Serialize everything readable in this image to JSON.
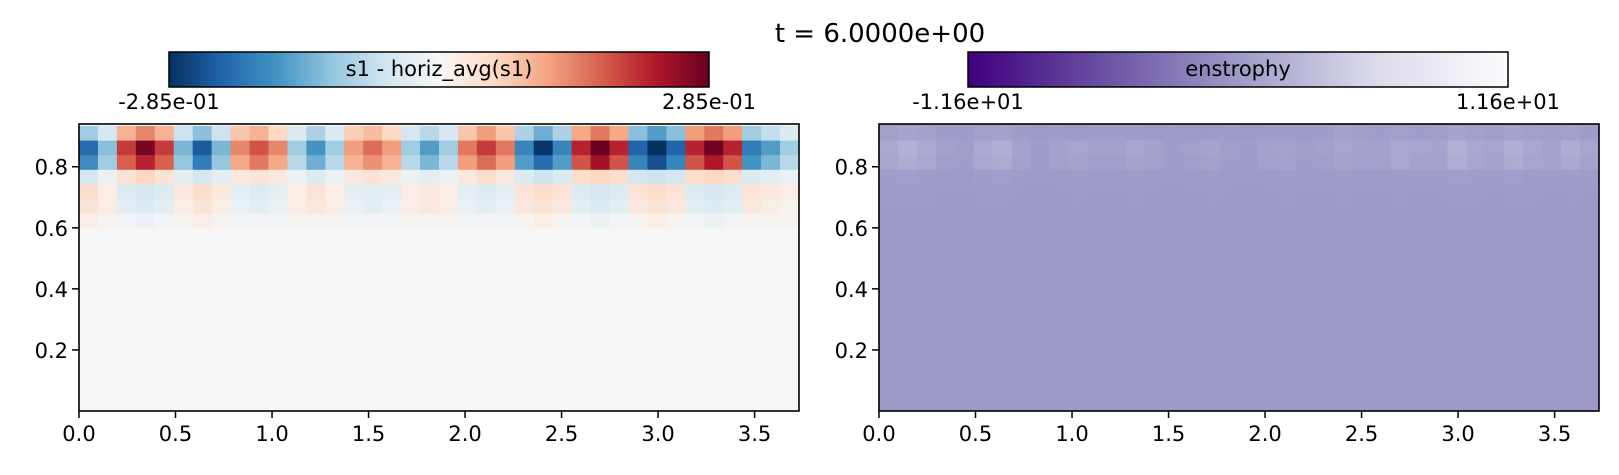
{
  "figure": {
    "title": "t = 6.0000e+00"
  },
  "chart_data": [
    {
      "type": "heatmap",
      "colorbar": {
        "label": "s1 - horiz_avg(s1)",
        "min_label": "-2.85e-01",
        "max_label": "2.85e-01",
        "colormap": "RdBu_r",
        "range": [
          -0.285,
          0.285
        ]
      },
      "xlim": [
        0,
        3.73
      ],
      "ylim": [
        0,
        0.94
      ],
      "xticks": [
        "0.0",
        "0.5",
        "1.0",
        "1.5",
        "2.0",
        "2.5",
        "3.0",
        "3.5"
      ],
      "yticks": [
        "0.2",
        "0.4",
        "0.6",
        "0.8"
      ],
      "grid": false,
      "cells_per_row": 38,
      "rows_from_top": [
        [
          -0.1,
          -0.05,
          0.1,
          0.14,
          0.1,
          -0.06,
          -0.12,
          -0.06,
          0.08,
          0.1,
          0.06,
          -0.04,
          -0.09,
          -0.04,
          0.07,
          0.09,
          0.06,
          -0.05,
          -0.08,
          -0.05,
          0.08,
          0.12,
          0.08,
          -0.09,
          -0.14,
          -0.09,
          0.11,
          0.15,
          0.11,
          -0.12,
          -0.16,
          -0.12,
          0.12,
          0.15,
          0.12,
          -0.1,
          -0.07,
          -0.04
        ],
        [
          -0.22,
          -0.12,
          0.2,
          0.27,
          0.2,
          -0.13,
          -0.24,
          -0.13,
          0.14,
          0.18,
          0.14,
          -0.1,
          -0.17,
          -0.1,
          0.12,
          0.16,
          0.12,
          -0.1,
          -0.16,
          -0.1,
          0.15,
          0.2,
          0.15,
          -0.19,
          -0.28,
          -0.19,
          0.22,
          0.29,
          0.22,
          -0.23,
          -0.3,
          -0.23,
          0.22,
          0.28,
          0.22,
          -0.2,
          -0.16,
          -0.1
        ],
        [
          -0.18,
          -0.1,
          0.17,
          0.22,
          0.17,
          -0.11,
          -0.2,
          -0.11,
          0.11,
          0.15,
          0.11,
          -0.08,
          -0.14,
          -0.08,
          0.1,
          0.13,
          0.1,
          -0.08,
          -0.13,
          -0.08,
          0.12,
          0.16,
          0.12,
          -0.16,
          -0.22,
          -0.16,
          0.18,
          0.24,
          0.18,
          -0.19,
          -0.25,
          -0.19,
          0.18,
          0.23,
          0.18,
          -0.17,
          -0.13,
          -0.08
        ],
        [
          -0.05,
          -0.02,
          0.04,
          0.06,
          0.04,
          -0.03,
          -0.05,
          -0.03,
          0.03,
          0.04,
          0.03,
          -0.02,
          -0.04,
          -0.02,
          0.03,
          0.04,
          0.03,
          -0.02,
          -0.03,
          -0.02,
          0.03,
          0.05,
          0.03,
          -0.04,
          -0.06,
          -0.04,
          0.05,
          0.06,
          0.05,
          -0.05,
          -0.06,
          -0.05,
          0.05,
          0.06,
          0.05,
          -0.04,
          -0.03,
          -0.02
        ],
        [
          0.05,
          0.02,
          -0.04,
          -0.05,
          -0.04,
          0.03,
          0.05,
          0.03,
          -0.03,
          -0.04,
          -0.03,
          0.02,
          0.04,
          0.02,
          -0.03,
          -0.03,
          -0.03,
          0.02,
          0.03,
          0.02,
          -0.03,
          -0.04,
          -0.03,
          0.04,
          0.05,
          0.04,
          -0.04,
          -0.05,
          -0.04,
          0.04,
          0.05,
          0.04,
          -0.04,
          -0.05,
          -0.04,
          0.04,
          0.03,
          0.02
        ],
        [
          0.04,
          0.02,
          -0.03,
          -0.04,
          -0.03,
          0.02,
          0.04,
          0.02,
          -0.02,
          -0.03,
          -0.02,
          0.02,
          0.03,
          0.02,
          -0.02,
          -0.03,
          -0.02,
          0.02,
          0.03,
          0.02,
          -0.02,
          -0.03,
          -0.02,
          0.03,
          0.04,
          0.03,
          -0.03,
          -0.04,
          -0.03,
          0.03,
          0.04,
          0.03,
          -0.03,
          -0.04,
          -0.03,
          0.03,
          0.02,
          0.01
        ],
        [
          0.02,
          0.01,
          -0.01,
          -0.02,
          -0.01,
          0.01,
          0.02,
          0.01,
          -0.01,
          -0.01,
          -0.01,
          0.01,
          0.01,
          0.01,
          -0.01,
          -0.01,
          -0.01,
          0.01,
          0.01,
          0.01,
          -0.01,
          -0.01,
          -0.01,
          0.01,
          0.02,
          0.01,
          -0.01,
          -0.02,
          -0.01,
          0.01,
          0.02,
          0.01,
          -0.01,
          -0.02,
          -0.01,
          0.01,
          0.01,
          0.01
        ]
      ],
      "background_value": 0.0
    },
    {
      "type": "heatmap",
      "colorbar": {
        "label": "enstrophy",
        "min_label": "-1.16e+01",
        "max_label": "1.16e+01",
        "colormap": "Purples_r",
        "range": [
          -11.6,
          11.6
        ]
      },
      "xlim": [
        0,
        3.73
      ],
      "ylim": [
        0,
        0.94
      ],
      "xticks": [
        "0.0",
        "0.5",
        "1.0",
        "1.5",
        "2.0",
        "2.5",
        "3.0",
        "3.5"
      ],
      "yticks": [
        "0.2",
        "0.4",
        "0.6",
        "0.8"
      ],
      "grid": false,
      "cells_per_row": 38,
      "rows_from_top": [
        [
          0.5,
          0.8,
          0.6,
          0.3,
          0.2,
          0.5,
          0.6,
          0.3,
          0.1,
          0.2,
          0.1,
          0.2,
          0.3,
          0.2,
          0.1,
          0.2,
          0.1,
          0.1,
          0.2,
          0.1,
          0.2,
          0.3,
          0.2,
          0.3,
          0.6,
          0.4,
          0.3,
          0.5,
          0.3,
          0.4,
          0.8,
          0.5,
          0.4,
          0.7,
          0.5,
          0.4,
          0.6,
          0.3
        ],
        [
          1.2,
          2.0,
          1.4,
          0.5,
          0.4,
          1.4,
          1.8,
          0.7,
          0.3,
          0.6,
          0.9,
          0.5,
          0.5,
          1.0,
          0.6,
          0.3,
          0.5,
          0.8,
          0.4,
          0.3,
          0.6,
          0.7,
          0.4,
          0.5,
          0.9,
          0.6,
          0.6,
          1.3,
          0.9,
          0.8,
          2.0,
          1.2,
          0.9,
          1.8,
          1.1,
          0.8,
          1.6,
          0.9
        ],
        [
          1.0,
          1.6,
          1.1,
          0.4,
          0.3,
          1.1,
          1.5,
          0.6,
          0.2,
          0.5,
          0.7,
          0.4,
          0.4,
          0.8,
          0.5,
          0.2,
          0.4,
          0.6,
          0.3,
          0.2,
          0.5,
          0.6,
          0.3,
          0.4,
          0.8,
          0.5,
          0.5,
          1.1,
          0.7,
          0.7,
          1.7,
          1.0,
          0.8,
          1.5,
          0.9,
          0.7,
          1.3,
          0.7
        ],
        [
          0.3,
          0.4,
          0.3,
          0.1,
          0.1,
          0.3,
          0.4,
          0.2,
          0.1,
          0.1,
          0.2,
          0.1,
          0.1,
          0.2,
          0.1,
          0.1,
          0.1,
          0.2,
          0.1,
          0.1,
          0.1,
          0.2,
          0.1,
          0.1,
          0.2,
          0.1,
          0.1,
          0.3,
          0.2,
          0.2,
          0.4,
          0.3,
          0.2,
          0.4,
          0.2,
          0.2,
          0.3,
          0.2
        ],
        [
          0.2,
          0.2,
          0.1,
          0.1,
          0.1,
          0.1,
          0.2,
          0.1,
          0.0,
          0.1,
          0.1,
          0.1,
          0.1,
          0.1,
          0.1,
          0.0,
          0.1,
          0.1,
          0.1,
          0.0,
          0.1,
          0.1,
          0.1,
          0.1,
          0.1,
          0.1,
          0.1,
          0.1,
          0.1,
          0.1,
          0.2,
          0.1,
          0.1,
          0.2,
          0.1,
          0.1,
          0.1,
          0.1
        ],
        [
          0.1,
          0.1,
          0.1,
          0.0,
          0.0,
          0.1,
          0.1,
          0.0,
          0.0,
          0.0,
          0.1,
          0.0,
          0.0,
          0.1,
          0.0,
          0.0,
          0.0,
          0.1,
          0.0,
          0.0,
          0.0,
          0.1,
          0.0,
          0.0,
          0.1,
          0.0,
          0.0,
          0.1,
          0.0,
          0.0,
          0.1,
          0.1,
          0.0,
          0.1,
          0.1,
          0.0,
          0.1,
          0.0
        ]
      ],
      "background_value": 0.0
    }
  ]
}
